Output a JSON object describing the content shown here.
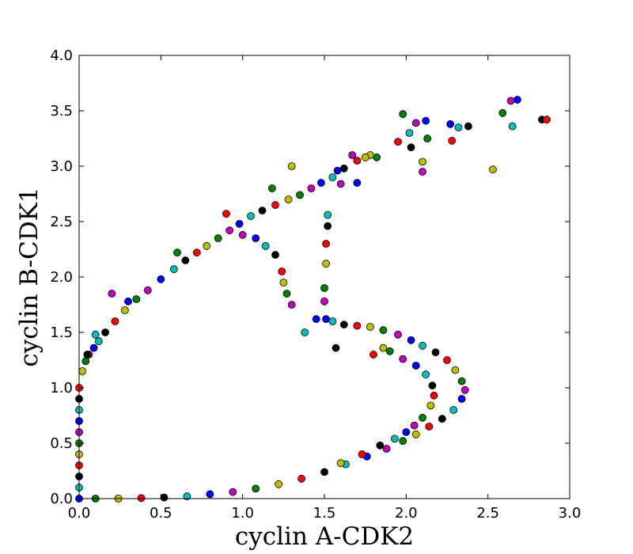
{
  "chart_data": {
    "type": "scatter",
    "title": "",
    "xlabel": "cyclin A-CDK2",
    "ylabel": "cyclin B-CDK1",
    "xlim": [
      0,
      3
    ],
    "ylim": [
      0,
      4
    ],
    "xticks": [
      "0.0",
      "0.5",
      "1.0",
      "1.5",
      "2.0",
      "2.5",
      "3.0"
    ],
    "yticks": [
      "0.0",
      "0.5",
      "1.0",
      "1.5",
      "2.0",
      "2.5",
      "3.0",
      "3.5",
      "4.0"
    ],
    "grid": false,
    "legend": "none",
    "marker_colors": [
      "#0000ff",
      "#008000",
      "#ff0000",
      "#00bfbf",
      "#bf00bf",
      "#bfbf00",
      "#000000"
    ],
    "points": [
      [
        0.0,
        0.0
      ],
      [
        0.0,
        0.1
      ],
      [
        0.0,
        0.2
      ],
      [
        0.0,
        0.3
      ],
      [
        0.0,
        0.4
      ],
      [
        0.0,
        0.5
      ],
      [
        0.0,
        0.6
      ],
      [
        0.0,
        0.7
      ],
      [
        0.0,
        0.8
      ],
      [
        0.0,
        0.9
      ],
      [
        0.0,
        1.0
      ],
      [
        0.02,
        1.15
      ],
      [
        0.04,
        1.24
      ],
      [
        0.06,
        1.3
      ],
      [
        0.09,
        1.36
      ],
      [
        0.12,
        1.42
      ],
      [
        0.16,
        1.5
      ],
      [
        0.22,
        1.6
      ],
      [
        0.28,
        1.7
      ],
      [
        0.35,
        1.8
      ],
      [
        0.42,
        1.88
      ],
      [
        0.5,
        1.98
      ],
      [
        0.58,
        2.07
      ],
      [
        0.65,
        2.15
      ],
      [
        0.72,
        2.22
      ],
      [
        0.78,
        2.28
      ],
      [
        0.85,
        2.35
      ],
      [
        0.92,
        2.42
      ],
      [
        0.98,
        2.48
      ],
      [
        1.05,
        2.55
      ],
      [
        1.12,
        2.6
      ],
      [
        1.2,
        2.65
      ],
      [
        1.28,
        2.7
      ],
      [
        1.35,
        2.74
      ],
      [
        1.42,
        2.8
      ],
      [
        1.48,
        2.85
      ],
      [
        1.55,
        2.9
      ],
      [
        1.62,
        2.98
      ],
      [
        1.7,
        3.05
      ],
      [
        1.78,
        3.1
      ],
      [
        0.6,
        2.22
      ],
      [
        0.2,
        1.85
      ],
      [
        0.3,
        1.78
      ],
      [
        0.1,
        1.48
      ],
      [
        0.05,
        1.3
      ],
      [
        0.9,
        2.57
      ],
      [
        1.3,
        3.0
      ],
      [
        1.18,
        2.8
      ],
      [
        1.6,
        2.84
      ],
      [
        1.7,
        2.85
      ],
      [
        1.52,
        2.56
      ],
      [
        1.52,
        2.46
      ],
      [
        1.51,
        2.3
      ],
      [
        1.51,
        2.12
      ],
      [
        1.5,
        1.9
      ],
      [
        1.5,
        1.78
      ],
      [
        1.51,
        1.62
      ],
      [
        1.55,
        1.6
      ],
      [
        1.62,
        1.57
      ],
      [
        1.7,
        1.56
      ],
      [
        1.78,
        1.55
      ],
      [
        1.86,
        1.52
      ],
      [
        1.95,
        1.48
      ],
      [
        2.03,
        1.43
      ],
      [
        2.1,
        1.38
      ],
      [
        2.18,
        1.32
      ],
      [
        2.25,
        1.25
      ],
      [
        2.3,
        1.16
      ],
      [
        2.34,
        1.06
      ],
      [
        2.36,
        0.98
      ],
      [
        2.34,
        0.9
      ],
      [
        2.29,
        0.8
      ],
      [
        2.22,
        0.72
      ],
      [
        2.14,
        0.65
      ],
      [
        2.06,
        0.58
      ],
      [
        1.98,
        0.52
      ],
      [
        1.88,
        0.45
      ],
      [
        1.76,
        0.38
      ],
      [
        1.63,
        0.31
      ],
      [
        1.5,
        0.24
      ],
      [
        1.36,
        0.18
      ],
      [
        1.22,
        0.13
      ],
      [
        1.08,
        0.09
      ],
      [
        0.94,
        0.06
      ],
      [
        0.8,
        0.04
      ],
      [
        0.66,
        0.02
      ],
      [
        0.52,
        0.01
      ],
      [
        0.38,
        0.005
      ],
      [
        0.24,
        0.0
      ],
      [
        0.1,
        0.0
      ],
      [
        1.0,
        2.38
      ],
      [
        1.08,
        2.35
      ],
      [
        1.14,
        2.28
      ],
      [
        1.2,
        2.2
      ],
      [
        1.24,
        2.05
      ],
      [
        1.25,
        1.95
      ],
      [
        1.27,
        1.85
      ],
      [
        1.3,
        1.75
      ],
      [
        1.45,
        1.62
      ],
      [
        1.38,
        1.5
      ],
      [
        1.57,
        1.36
      ],
      [
        1.8,
        1.3
      ],
      [
        1.86,
        1.36
      ],
      [
        1.9,
        1.33
      ],
      [
        1.98,
        1.26
      ],
      [
        2.06,
        1.2
      ],
      [
        2.12,
        1.12
      ],
      [
        2.16,
        1.02
      ],
      [
        2.17,
        0.93
      ],
      [
        2.15,
        0.84
      ],
      [
        2.1,
        0.73
      ],
      [
        2.05,
        0.66
      ],
      [
        2.0,
        0.6
      ],
      [
        1.93,
        0.54
      ],
      [
        1.84,
        0.48
      ],
      [
        1.73,
        0.4
      ],
      [
        1.6,
        0.32
      ],
      [
        1.98,
        3.47
      ],
      [
        2.06,
        3.39
      ],
      [
        2.12,
        3.41
      ],
      [
        2.02,
        3.3
      ],
      [
        2.03,
        3.17
      ],
      [
        1.95,
        3.22
      ],
      [
        2.1,
        3.04
      ],
      [
        2.13,
        3.25
      ],
      [
        2.1,
        2.95
      ],
      [
        2.27,
        3.38
      ],
      [
        2.32,
        3.35
      ],
      [
        2.38,
        3.36
      ],
      [
        2.28,
        3.23
      ],
      [
        2.53,
        2.97
      ],
      [
        2.59,
        3.48
      ],
      [
        2.64,
        3.59
      ],
      [
        2.68,
        3.6
      ],
      [
        2.65,
        3.36
      ],
      [
        2.83,
        3.42
      ],
      [
        2.86,
        3.42
      ],
      [
        1.75,
        3.08
      ],
      [
        1.82,
        3.08
      ],
      [
        1.67,
        3.1
      ],
      [
        1.58,
        2.96
      ]
    ]
  }
}
